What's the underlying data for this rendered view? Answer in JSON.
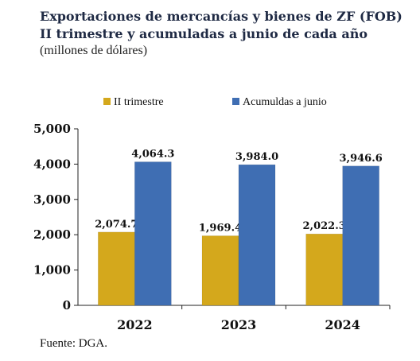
{
  "header": {
    "title_line1": "Exportaciones de mercancías y bienes de ZF (FOB)",
    "title_line2": "II trimestre y acumuladas a junio de cada año",
    "subtitle": "(millones de dólares)"
  },
  "footer": {
    "source": "Fuente: DGA."
  },
  "chart_data": {
    "type": "bar",
    "categories": [
      "2022",
      "2023",
      "2024"
    ],
    "series": [
      {
        "name": "II trimestre",
        "values": [
          2074.7,
          1969.4,
          2022.3
        ],
        "labels": [
          "2,074.7",
          "1,969.4",
          "2,022.3"
        ],
        "color": "#d4a81c"
      },
      {
        "name": "Acumuldas a junio",
        "values": [
          4064.3,
          3984.0,
          3946.6
        ],
        "labels": [
          "4,064.3",
          "3,984.0",
          "3,946.6"
        ],
        "color": "#3f6eb3"
      }
    ],
    "ylim": [
      0,
      5000
    ],
    "yticks": [
      0,
      1000,
      2000,
      3000,
      4000,
      5000
    ],
    "ytick_labels": [
      "0",
      "1,000",
      "2,000",
      "3,000",
      "4,000",
      "5,000"
    ],
    "legend_position": "top",
    "grid": false
  }
}
